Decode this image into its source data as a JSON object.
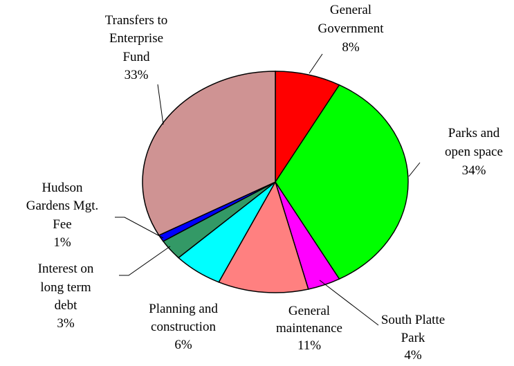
{
  "chart_data": {
    "type": "pie",
    "categories": [
      [
        "General",
        "Government"
      ],
      [
        "Parks and",
        "open space"
      ],
      [
        "South Platte",
        "Park"
      ],
      [
        "General",
        "maintenance"
      ],
      [
        "Planning and",
        "construction"
      ],
      [
        "Interest on",
        "long term",
        "debt"
      ],
      [
        "Hudson",
        "Gardens Mgt.",
        "Fee"
      ],
      [
        "Transfers to",
        "Enterprise",
        "Fund"
      ]
    ],
    "values": [
      8,
      34,
      4,
      11,
      6,
      3,
      1,
      33
    ],
    "value_labels": [
      "8%",
      "34%",
      "4%",
      "11%",
      "6%",
      "3%",
      "1%",
      "33%"
    ],
    "colors": [
      "#ff0000",
      "#00ff00",
      "#ff00ff",
      "#ff8080",
      "#00ffff",
      "#339966",
      "#0000ff",
      "#cf9393"
    ]
  }
}
